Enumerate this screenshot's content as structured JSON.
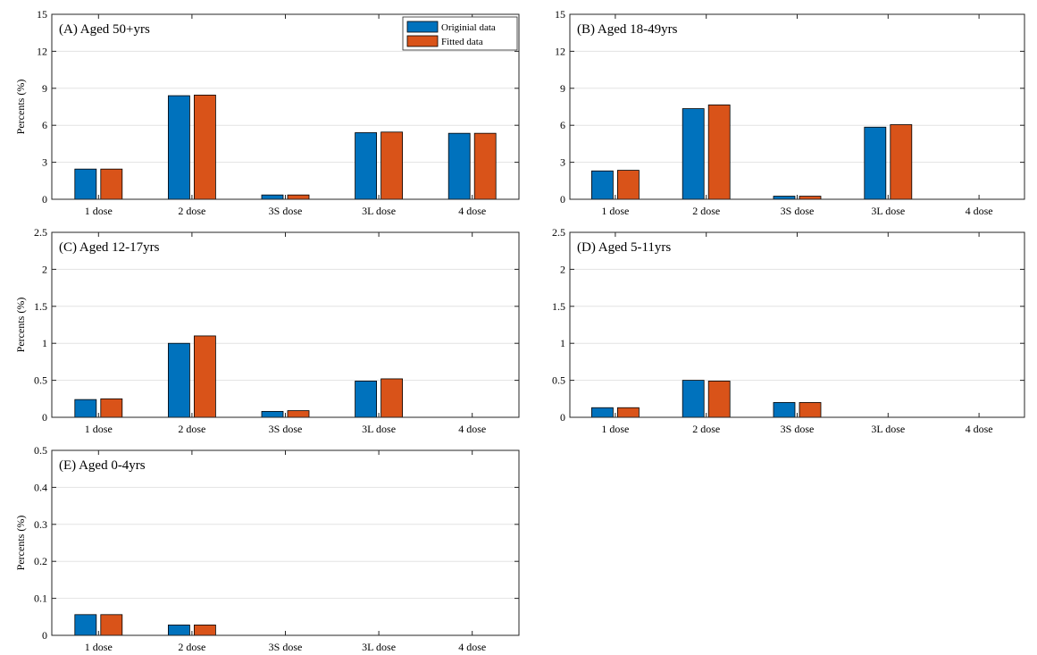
{
  "colors": {
    "original": "#0072BD",
    "fitted": "#D95319",
    "grid": "#e3e3e3",
    "axis": "#262626"
  },
  "legend": {
    "original_label": "Originial data",
    "fitted_label": "Fitted data"
  },
  "chart_data": [
    {
      "type": "bar",
      "title": "(A) Aged 50+yrs",
      "ylabel": "Percents (%)",
      "categories": [
        "1 dose",
        "2 dose",
        "3S dose",
        "3L dose",
        "4 dose"
      ],
      "ylim": [
        0,
        15
      ],
      "yticks": [
        "0",
        "3",
        "6",
        "9",
        "12",
        "15"
      ],
      "grid": true,
      "legend": "top-right",
      "series": [
        {
          "name": "Originial data",
          "values": [
            2.45,
            8.4,
            0.35,
            5.4,
            5.35
          ]
        },
        {
          "name": "Fitted data",
          "values": [
            2.45,
            8.45,
            0.35,
            5.45,
            5.35
          ]
        }
      ]
    },
    {
      "type": "bar",
      "title": "(B) Aged 18-49yrs",
      "ylabel": "",
      "categories": [
        "1 dose",
        "2 dose",
        "3S dose",
        "3L dose",
        "4 dose"
      ],
      "ylim": [
        0,
        15
      ],
      "yticks": [
        "0",
        "3",
        "6",
        "9",
        "12",
        "15"
      ],
      "grid": true,
      "series": [
        {
          "values": [
            2.3,
            7.35,
            0.25,
            5.85,
            0.0
          ]
        },
        {
          "values": [
            2.35,
            7.65,
            0.25,
            6.05,
            0.0
          ]
        }
      ]
    },
    {
      "type": "bar",
      "title": "(C) Aged 12-17yrs",
      "ylabel": "Percents (%)",
      "categories": [
        "1 dose",
        "2 dose",
        "3S dose",
        "3L dose",
        "4 dose"
      ],
      "ylim": [
        0,
        2.5
      ],
      "yticks": [
        "0",
        "0.5",
        "1",
        "1.5",
        "2",
        "2.5"
      ],
      "grid": true,
      "series": [
        {
          "values": [
            0.24,
            1.0,
            0.08,
            0.49,
            0.0
          ]
        },
        {
          "values": [
            0.25,
            1.1,
            0.09,
            0.52,
            0.0
          ]
        }
      ]
    },
    {
      "type": "bar",
      "title": "(D) Aged 5-11yrs",
      "ylabel": "",
      "categories": [
        "1 dose",
        "2 dose",
        "3S dose",
        "3L dose",
        "4 dose"
      ],
      "ylim": [
        0,
        2.5
      ],
      "yticks": [
        "0",
        "0.5",
        "1",
        "1.5",
        "2",
        "2.5"
      ],
      "grid": true,
      "series": [
        {
          "values": [
            0.13,
            0.5,
            0.2,
            0.0,
            0.0
          ]
        },
        {
          "values": [
            0.13,
            0.49,
            0.2,
            0.0,
            0.0
          ]
        }
      ]
    },
    {
      "type": "bar",
      "title": "(E) Aged 0-4yrs",
      "ylabel": "Percents (%)",
      "categories": [
        "1 dose",
        "2 dose",
        "3S dose",
        "3L dose",
        "4 dose"
      ],
      "ylim": [
        0,
        0.5
      ],
      "yticks": [
        "0",
        "0.1",
        "0.2",
        "0.3",
        "0.4",
        "0.5"
      ],
      "grid": true,
      "series": [
        {
          "values": [
            0.056,
            0.028,
            0.0,
            0.0,
            0.0
          ]
        },
        {
          "values": [
            0.056,
            0.028,
            0.0,
            0.0,
            0.0
          ]
        }
      ]
    }
  ]
}
